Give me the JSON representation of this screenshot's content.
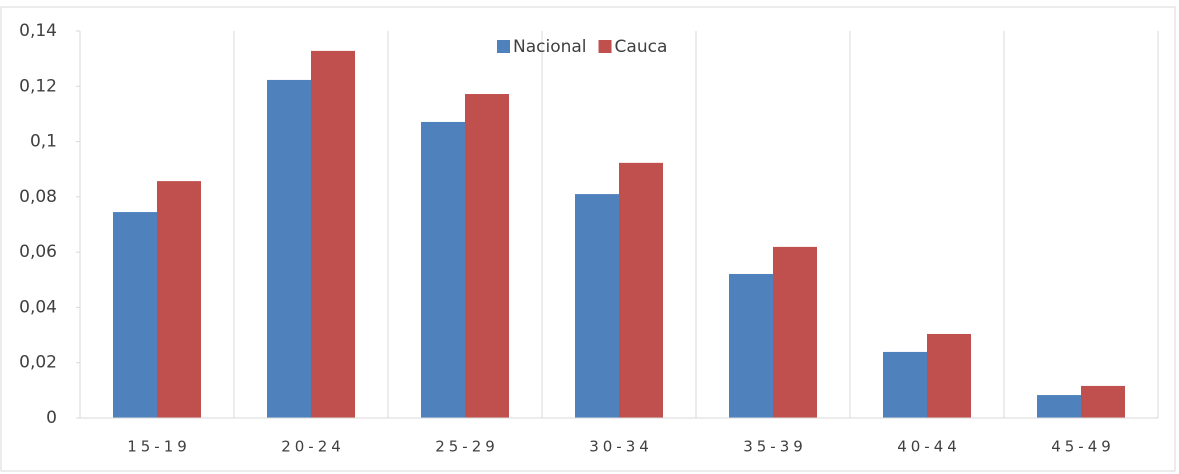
{
  "chart_data": {
    "type": "bar",
    "categories": [
      "15-19",
      "20-24",
      "25-29",
      "30-34",
      "35-39",
      "40-44",
      "45-49"
    ],
    "series": [
      {
        "name": "Nacional",
        "color": "#4f81bd",
        "values": [
          0.0745,
          0.1223,
          0.1071,
          0.081,
          0.0521,
          0.0239,
          0.0083
        ]
      },
      {
        "name": "Cauca",
        "color": "#c0504d",
        "values": [
          0.0857,
          0.1328,
          0.1172,
          0.0923,
          0.0619,
          0.0304,
          0.0116
        ]
      }
    ],
    "ylim": [
      0,
      0.14
    ],
    "yticks": [
      0,
      {
        "value": 0.02,
        "label": "0,02"
      },
      {
        "value": 0.04,
        "label": "0,04"
      },
      {
        "value": 0.06,
        "label": "0,06"
      },
      {
        "value": 0.08,
        "label": "0,08"
      },
      {
        "value": 0.1,
        "label": "0,1"
      },
      {
        "value": 0.12,
        "label": "0,12"
      },
      {
        "value": 0.14,
        "label": "0,14"
      }
    ],
    "legend": "top-center"
  }
}
